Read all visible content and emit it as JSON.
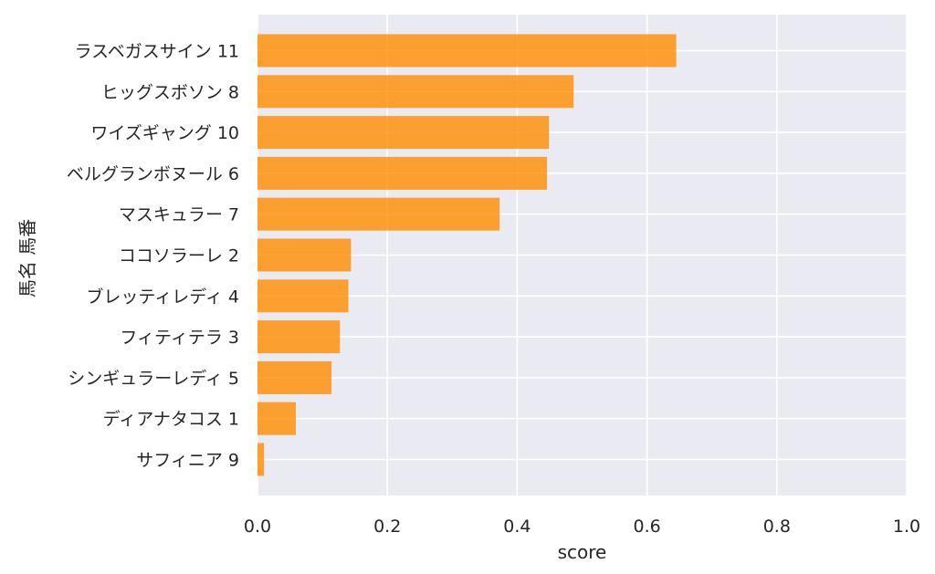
{
  "chart_data": {
    "type": "bar",
    "orientation": "horizontal",
    "title": "",
    "xlabel": "score",
    "ylabel": "馬名 馬番",
    "xlim": [
      0.0,
      1.0
    ],
    "xticks": [
      "0.0",
      "0.2",
      "0.4",
      "0.6",
      "0.8",
      "1.0"
    ],
    "grid": true,
    "bar_color": "#ff8c00",
    "background_color": "#eaeaf2",
    "categories": [
      "ラスベガスサイン 11",
      "ヒッグスボソン 8",
      "ワイズギャング 10",
      "ベルグランボヌール 6",
      "マスキュラー 7",
      "ココソラーレ 2",
      "ブレッティレディ 4",
      "フィティテラ 3",
      "シンギュラーレディ 5",
      "ディアナタコス 1",
      "サフィニア 9"
    ],
    "values": [
      0.645,
      0.487,
      0.449,
      0.446,
      0.373,
      0.144,
      0.14,
      0.127,
      0.114,
      0.059,
      0.01
    ]
  }
}
